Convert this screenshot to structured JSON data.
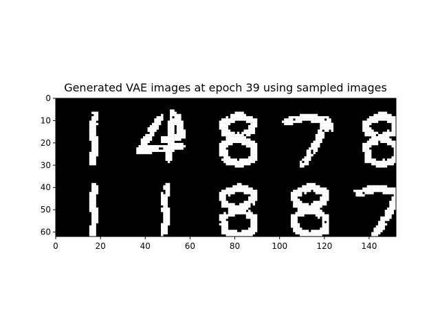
{
  "chart_data": {
    "type": "heatmap",
    "title": "Generated VAE images at epoch 39 using sampled images",
    "xlabel": "",
    "ylabel": "",
    "xlim": [
      0,
      152
    ],
    "ylim": [
      62,
      0
    ],
    "x_ticks": [
      0,
      20,
      40,
      60,
      80,
      100,
      120,
      140
    ],
    "y_ticks": [
      0,
      10,
      20,
      30,
      40,
      50,
      60
    ],
    "grid": false,
    "colormap": "gray",
    "colors": {
      "background": "#000000",
      "pixel_on": "#ffffff",
      "axes": "#000000",
      "page": "#ffffff"
    },
    "image_grid": {
      "rows": 2,
      "cols": 5,
      "cell_width": 30,
      "cell_height": 30,
      "padding": 2
    },
    "digits": [
      [
        1,
        4,
        8,
        7,
        8
      ],
      [
        1,
        1,
        8,
        8,
        7
      ]
    ]
  }
}
